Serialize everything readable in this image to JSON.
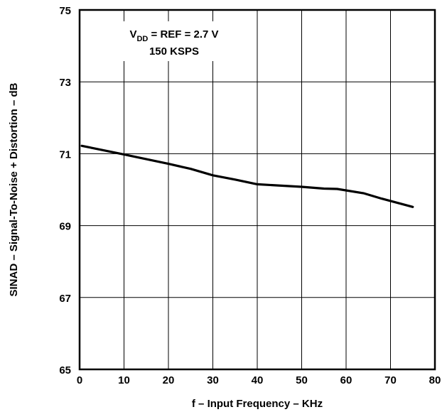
{
  "chart_data": {
    "type": "line",
    "xlabel": "f – Input Frequency – KHz",
    "ylabel": "SINAD – Signal-To-Noise + Distortion – dB",
    "xlim": [
      0,
      80
    ],
    "ylim": [
      65,
      75
    ],
    "x_ticks": [
      0,
      10,
      20,
      30,
      40,
      50,
      60,
      70,
      80
    ],
    "y_ticks": [
      65,
      67,
      69,
      71,
      73,
      75
    ],
    "x_tick_labels": [
      "0",
      "10",
      "20",
      "30",
      "40",
      "50",
      "60",
      "70",
      "80"
    ],
    "y_tick_labels": [
      "65",
      "67",
      "69",
      "71",
      "73",
      "75"
    ],
    "grid": true,
    "annotation": {
      "line1_prefix": "V",
      "line1_subscript": "DD",
      "line1_suffix": " = REF = 2.7 V",
      "line2": "150 KSPS"
    },
    "series": [
      {
        "x": [
          0.5,
          10,
          20,
          25,
          30,
          35,
          40,
          50,
          55,
          58,
          64,
          68,
          75
        ],
        "y": [
          71.22,
          70.98,
          70.72,
          70.58,
          70.4,
          70.28,
          70.15,
          70.08,
          70.03,
          70.02,
          69.9,
          69.75,
          69.52
        ]
      }
    ]
  }
}
